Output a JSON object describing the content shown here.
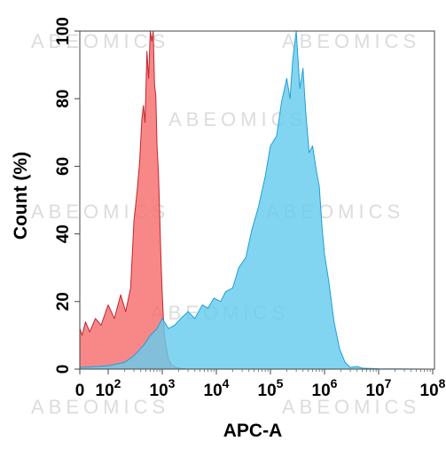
{
  "chart_data": {
    "type": "area",
    "xlabel": "APC-A",
    "ylabel": "Count (%)",
    "xscale": "biexponential-log",
    "xlim": [
      0,
      100000000
    ],
    "ylim": [
      0,
      100
    ],
    "x_ticks": [
      {
        "value": 0,
        "base": "0",
        "exp": ""
      },
      {
        "value": 100,
        "base": "10",
        "exp": "2"
      },
      {
        "value": 1000,
        "base": "10",
        "exp": "3"
      },
      {
        "value": 10000,
        "base": "10",
        "exp": "4"
      },
      {
        "value": 100000,
        "base": "10",
        "exp": "5"
      },
      {
        "value": 1000000,
        "base": "10",
        "exp": "6"
      },
      {
        "value": 10000000,
        "base": "10",
        "exp": "7"
      },
      {
        "value": 100000000,
        "base": "10",
        "exp": "8"
      }
    ],
    "y_ticks": [
      0,
      20,
      40,
      60,
      80,
      100
    ],
    "watermark": "ABEOMICS",
    "series": [
      {
        "color": "#f76e6e",
        "stroke": "#c0262c",
        "x": [
          0,
          8,
          20,
          35,
          55,
          75,
          100,
          130,
          170,
          210,
          260,
          300,
          340,
          380,
          420,
          450,
          480,
          520,
          560,
          600,
          640,
          680,
          720,
          760,
          800,
          850,
          900,
          950,
          1000,
          1050,
          1100,
          1200,
          1300,
          1500,
          1800,
          2200,
          3000
        ],
        "y": [
          12,
          10,
          14,
          11,
          15,
          13,
          19,
          15,
          22,
          17,
          24,
          44,
          52,
          61,
          74,
          78,
          73,
          94,
          86,
          100,
          97,
          100,
          84,
          81,
          66,
          58,
          45,
          32,
          22,
          15,
          10,
          6,
          3,
          1.2,
          0.5,
          0.2,
          0
        ]
      },
      {
        "color": "#66ccee",
        "stroke": "#1f9fd4",
        "x": [
          0,
          100,
          200,
          300,
          450,
          600,
          800,
          1000,
          1300,
          1700,
          2200,
          3000,
          4000,
          5500,
          7000,
          9000,
          12000,
          15000,
          20000,
          26000,
          35000,
          45000,
          60000,
          80000,
          100000,
          130000,
          160000,
          200000,
          230000,
          260000,
          300000,
          350000,
          400000,
          450000,
          520000,
          600000,
          700000,
          800000,
          900000,
          1000000,
          1200000,
          1500000,
          1900000,
          2400000,
          3000000,
          4000000,
          5000000,
          10000000,
          100000000
        ],
        "y": [
          0.5,
          1,
          2,
          4,
          7,
          10,
          12,
          15,
          12,
          13,
          15,
          17,
          15,
          19,
          18,
          21,
          20,
          23,
          24,
          30,
          33,
          41,
          48,
          57,
          66,
          69,
          79,
          86,
          80,
          92,
          100,
          83,
          89,
          76,
          64,
          66,
          59,
          54,
          42,
          34,
          26,
          14,
          6,
          2,
          0.5,
          0.8,
          0.3,
          0.1,
          0
        ]
      }
    ]
  }
}
